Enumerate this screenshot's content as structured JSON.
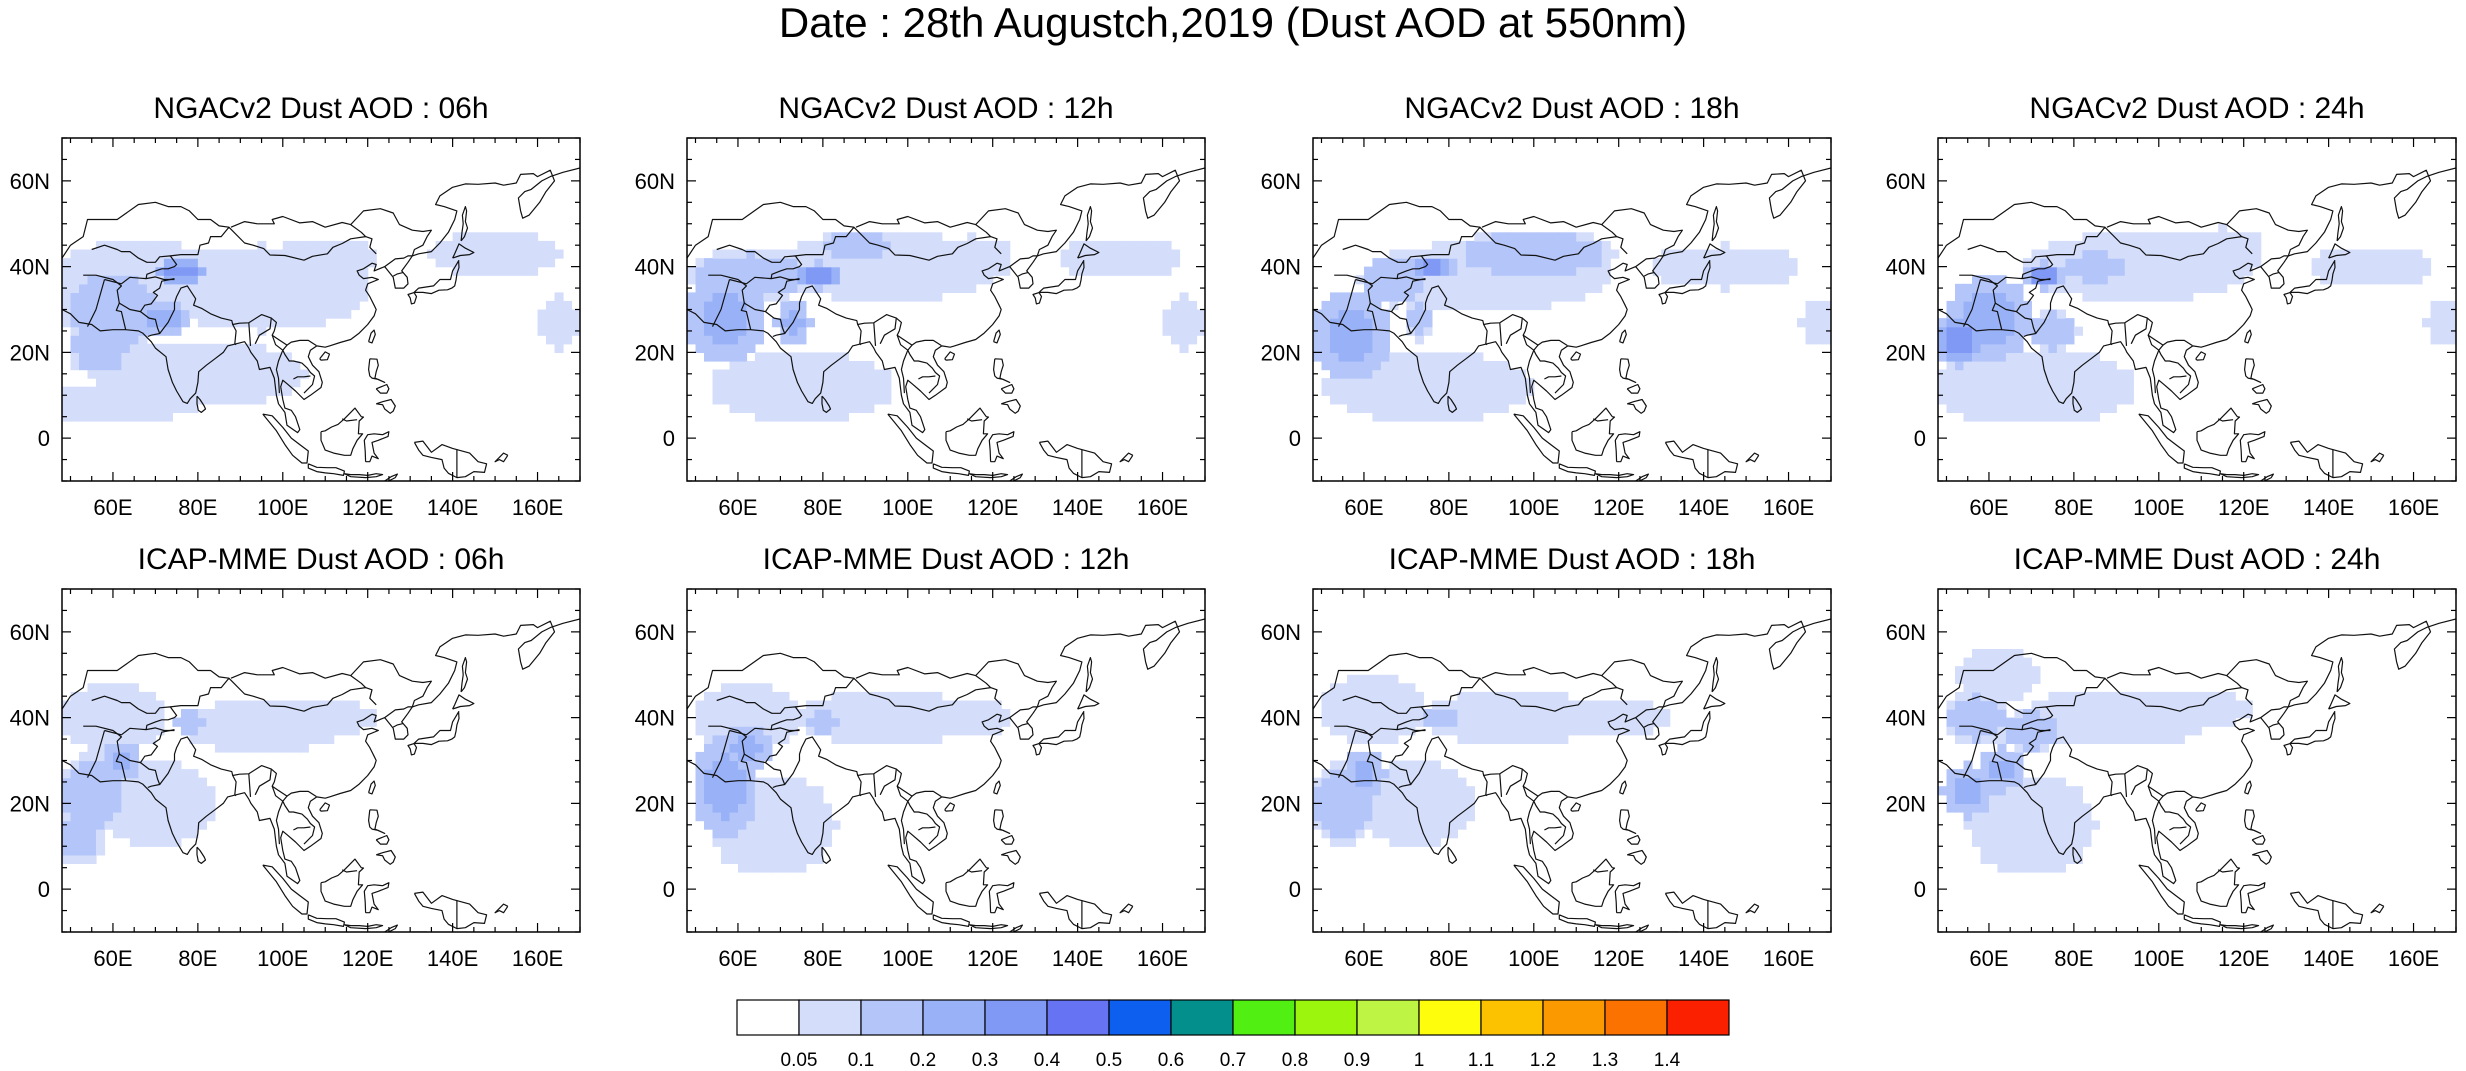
{
  "title": "Date : 28th Augustch,2019 (Dust AOD at 550nm)",
  "panels": [
    {
      "title": "NGACv2 Dust AOD : 06h",
      "model": "NGACv2",
      "hour": "06h",
      "blobs": [
        [
          76,
          39,
          6,
          3,
          4
        ],
        [
          72,
          28,
          6,
          5,
          3
        ],
        [
          60,
          30,
          12,
          10,
          2
        ],
        [
          57,
          22,
          8,
          8,
          2
        ],
        [
          66,
          38,
          20,
          8,
          1
        ],
        [
          95,
          35,
          25,
          10,
          1
        ],
        [
          110,
          42,
          12,
          5,
          1
        ],
        [
          80,
          15,
          25,
          8,
          1
        ],
        [
          150,
          43,
          15,
          5,
          1
        ],
        [
          165,
          27,
          5,
          6,
          1
        ],
        [
          60,
          8,
          20,
          4,
          1
        ]
      ]
    },
    {
      "title": "NGACv2 Dust AOD : 12h",
      "model": "NGACv2",
      "hour": "12h",
      "blobs": [
        [
          79,
          38,
          6,
          3,
          4
        ],
        [
          73,
          27,
          4,
          5,
          3
        ],
        [
          57,
          28,
          10,
          10,
          3
        ],
        [
          63,
          38,
          15,
          6,
          2
        ],
        [
          95,
          40,
          28,
          8,
          1
        ],
        [
          115,
          42,
          10,
          5,
          1
        ],
        [
          75,
          12,
          22,
          8,
          1
        ],
        [
          150,
          42,
          15,
          5,
          1
        ],
        [
          165,
          27,
          5,
          6,
          1
        ],
        [
          88,
          45,
          10,
          3,
          2
        ]
      ]
    },
    {
      "title": "NGACv2 Dust AOD : 18h",
      "model": "NGACv2",
      "hour": "18h",
      "blobs": [
        [
          76,
          40,
          6,
          3,
          4
        ],
        [
          67,
          37,
          8,
          6,
          2
        ],
        [
          57,
          24,
          10,
          10,
          3
        ],
        [
          73,
          28,
          3,
          5,
          2
        ],
        [
          100,
          43,
          20,
          6,
          2
        ],
        [
          90,
          38,
          28,
          8,
          1
        ],
        [
          75,
          12,
          25,
          8,
          1
        ],
        [
          145,
          40,
          18,
          5,
          1
        ],
        [
          168,
          27,
          5,
          6,
          1
        ]
      ]
    },
    {
      "title": "NGACv2 Dust AOD : 24h",
      "model": "NGACv2",
      "hour": "24h",
      "blobs": [
        [
          73,
          38,
          5,
          3,
          4
        ],
        [
          53,
          23,
          6,
          6,
          4
        ],
        [
          60,
          28,
          10,
          10,
          3
        ],
        [
          75,
          25,
          6,
          5,
          2
        ],
        [
          95,
          40,
          28,
          8,
          1
        ],
        [
          115,
          44,
          10,
          5,
          1
        ],
        [
          70,
          12,
          25,
          9,
          1
        ],
        [
          150,
          40,
          15,
          5,
          1
        ],
        [
          168,
          27,
          5,
          6,
          1
        ],
        [
          85,
          40,
          10,
          4,
          2
        ]
      ]
    },
    {
      "title": "ICAP-MME Dust AOD : 06h",
      "model": "ICAP-MME",
      "hour": "06h",
      "blobs": [
        [
          62,
          30,
          4,
          5,
          3
        ],
        [
          55,
          22,
          8,
          10,
          2
        ],
        [
          78,
          39,
          4,
          3,
          2
        ],
        [
          60,
          40,
          12,
          8,
          1
        ],
        [
          95,
          38,
          20,
          6,
          1
        ],
        [
          110,
          40,
          12,
          4,
          1
        ],
        [
          70,
          20,
          15,
          10,
          1
        ],
        [
          52,
          12,
          6,
          6,
          2
        ]
      ]
    },
    {
      "title": "ICAP-MME Dust AOD : 12h",
      "model": "ICAP-MME",
      "hour": "12h",
      "blobs": [
        [
          57,
          24,
          8,
          12,
          3
        ],
        [
          62,
          33,
          6,
          5,
          3
        ],
        [
          80,
          39,
          4,
          3,
          2
        ],
        [
          62,
          40,
          12,
          8,
          1
        ],
        [
          95,
          40,
          22,
          6,
          1
        ],
        [
          115,
          40,
          10,
          4,
          1
        ],
        [
          68,
          15,
          15,
          12,
          1
        ]
      ]
    },
    {
      "title": "ICAP-MME Dust AOD : 18h",
      "model": "ICAP-MME",
      "hour": "18h",
      "blobs": [
        [
          60,
          27,
          5,
          5,
          3
        ],
        [
          55,
          20,
          8,
          10,
          2
        ],
        [
          78,
          40,
          4,
          3,
          2
        ],
        [
          62,
          42,
          12,
          8,
          1
        ],
        [
          95,
          40,
          22,
          6,
          1
        ],
        [
          120,
          40,
          12,
          4,
          1
        ],
        [
          72,
          20,
          15,
          10,
          1
        ]
      ]
    },
    {
      "title": "ICAP-MME Dust AOD : 24h",
      "model": "ICAP-MME",
      "hour": "24h",
      "blobs": [
        [
          55,
          23,
          6,
          6,
          3
        ],
        [
          63,
          28,
          5,
          5,
          3
        ],
        [
          57,
          40,
          8,
          6,
          2
        ],
        [
          70,
          37,
          8,
          5,
          2
        ],
        [
          90,
          40,
          22,
          7,
          1
        ],
        [
          62,
          50,
          10,
          6,
          1
        ],
        [
          110,
          42,
          12,
          4,
          1
        ],
        [
          70,
          15,
          15,
          12,
          1
        ]
      ]
    }
  ],
  "axes": {
    "lon_range": [
      48,
      170
    ],
    "lat_range": [
      -10,
      70
    ],
    "lon_ticks": [
      "60E",
      "80E",
      "100E",
      "120E",
      "140E",
      "160E"
    ],
    "lat_ticks": [
      "0",
      "20N",
      "40N",
      "60N"
    ]
  },
  "colorbar": {
    "labels": [
      "0.05",
      "0.1",
      "0.2",
      "0.3",
      "0.4",
      "0.5",
      "0.6",
      "0.7",
      "0.8",
      "0.9",
      "1",
      "1.1",
      "1.2",
      "1.3",
      "1.4"
    ],
    "colors": [
      "#ffffff",
      "#d4defb",
      "#b4c6f9",
      "#99b2f7",
      "#8099f5",
      "#6673f3",
      "#0d5ff0",
      "#03908c",
      "#51ef12",
      "#9bf50c",
      "#bef443",
      "#fefe0c",
      "#fcc200",
      "#fb9900",
      "#fb7200",
      "#fb2000"
    ]
  }
}
